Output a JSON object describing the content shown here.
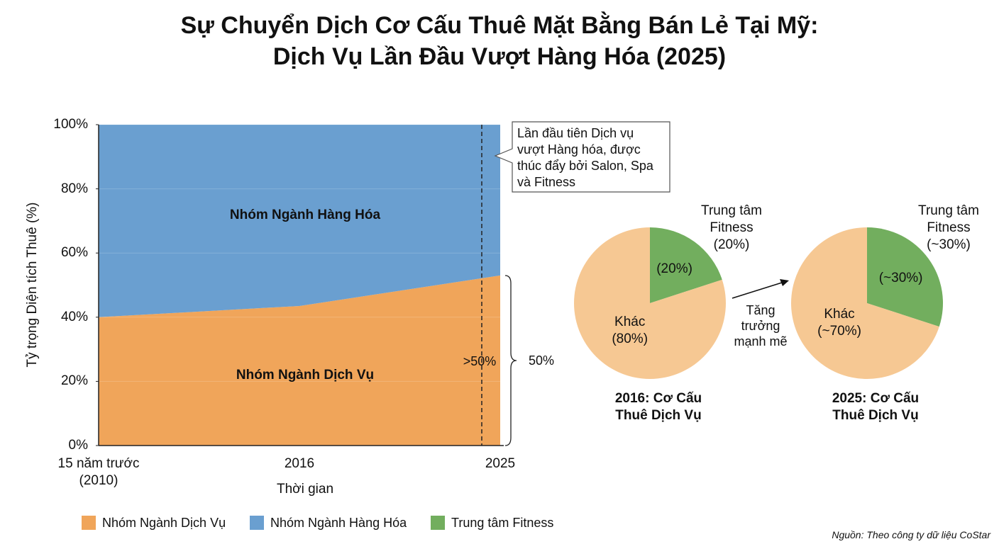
{
  "title": "Sự Chuyển Dịch Cơ Cấu Thuê Mặt Bằng Bán Lẻ Tại Mỹ:\nDịch Vụ Lần Đầu Vượt Hàng Hóa (2025)",
  "arrow_label": "Tăng\ntrưởng\nmạnh mẽ",
  "source": "Nguồn: Theo công ty dữ liệu CoStar",
  "chart_data": [
    {
      "type": "area",
      "stacked": true,
      "x_label": "Thời gian",
      "y_label": "Tỷ trọng Diện tích Thuê (%)",
      "categories": [
        "15 năm trước\n(2010)",
        "2016",
        "2025"
      ],
      "series": [
        {
          "name": "Nhóm Ngành Dịch Vụ",
          "color": "#F0A55A",
          "values": [
            40,
            43.5,
            53
          ]
        },
        {
          "name": "Nhóm Ngành Hàng Hóa",
          "color": "#6A9FD0",
          "values": [
            60,
            56.5,
            47
          ]
        }
      ],
      "ylim": [
        0,
        100
      ],
      "yticks": [
        {
          "value": 0,
          "label": "0%"
        },
        {
          "value": 20,
          "label": "20%"
        },
        {
          "value": 40,
          "label": "40%"
        },
        {
          "value": 60,
          "label": "60%"
        },
        {
          "value": 80,
          "label": "80%"
        },
        {
          "value": 100,
          "label": "100%"
        }
      ],
      "grid": true,
      "annotations": [
        ">50%",
        "50%",
        "Lần đầu tiên Dịch vụ\nvượt Hàng hóa, được\nthúc đẩy bởi Salon, Spa\nvà Fitness"
      ]
    },
    {
      "type": "pie",
      "title": "2016: Cơ Cấu\nThuê Dịch Vụ",
      "categories": [
        "Trung tâm Fitness",
        "Khác"
      ],
      "values": [
        20,
        80
      ],
      "value_labels": [
        "(20%)",
        "(80%)"
      ],
      "colors": [
        "#72AE5E",
        "#F6C893"
      ]
    },
    {
      "type": "pie",
      "title": "2025: Cơ Cấu\nThuê Dịch Vụ",
      "categories": [
        "Trung tâm Fitness",
        "Khác"
      ],
      "values": [
        30,
        70
      ],
      "value_labels": [
        "(~30%)",
        "(~70%)"
      ],
      "colors": [
        "#72AE5E",
        "#F6C893"
      ]
    }
  ]
}
